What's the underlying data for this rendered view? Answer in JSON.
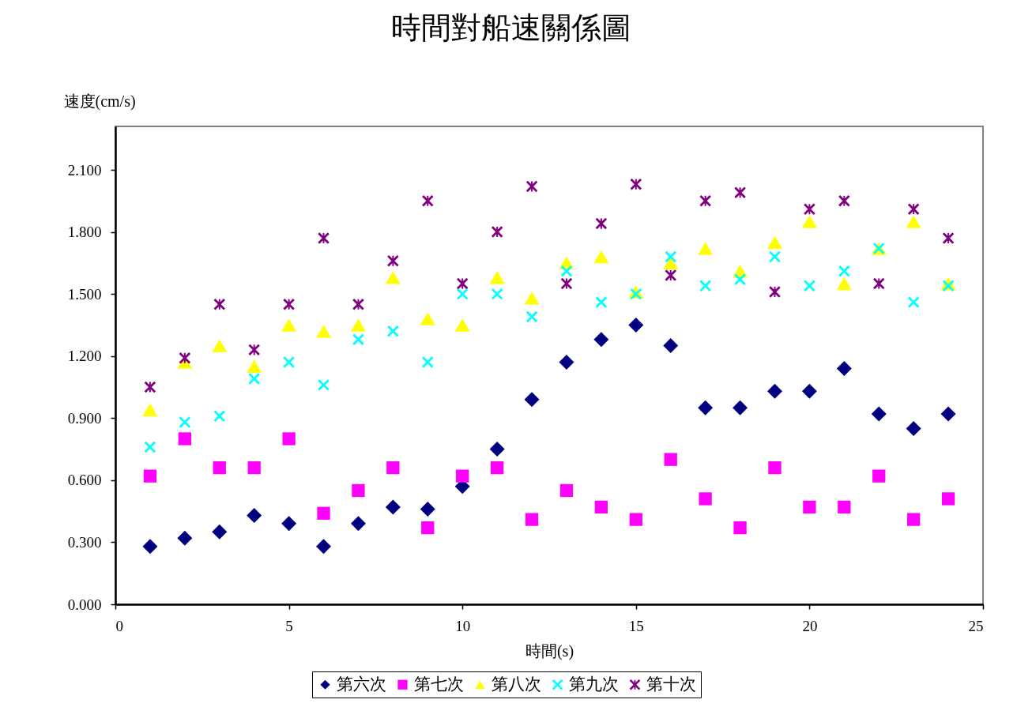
{
  "chart_data": {
    "type": "scatter",
    "title": "時間對船速關係圖",
    "xlabel": "時間(s)",
    "ylabel": "速度(cm/s)",
    "x": [
      1,
      2,
      3,
      4,
      5,
      6,
      7,
      8,
      9,
      10,
      11,
      12,
      13,
      14,
      15,
      16,
      17,
      18,
      19,
      20,
      21,
      22,
      23,
      24
    ],
    "series": [
      {
        "name": "第六次",
        "color": "#000080",
        "marker": "diamond",
        "values": [
          0.28,
          0.32,
          0.35,
          0.43,
          0.39,
          0.28,
          0.39,
          0.47,
          0.46,
          0.57,
          0.75,
          0.99,
          1.17,
          1.28,
          1.35,
          1.25,
          0.95,
          0.95,
          1.03,
          1.03,
          1.14,
          0.92,
          0.85,
          0.92
        ]
      },
      {
        "name": "第七次",
        "color": "#ff00ff",
        "marker": "square",
        "values": [
          0.62,
          0.8,
          0.66,
          0.66,
          0.8,
          0.44,
          0.55,
          0.66,
          0.37,
          0.62,
          0.66,
          0.41,
          0.55,
          0.47,
          0.41,
          0.7,
          0.51,
          0.37,
          0.66,
          0.47,
          0.47,
          0.62,
          0.41,
          0.51
        ]
      },
      {
        "name": "第八次",
        "color": "#ffff00",
        "marker": "triangle",
        "values": [
          0.94,
          1.17,
          1.25,
          1.15,
          1.35,
          1.32,
          1.35,
          1.58,
          1.38,
          1.35,
          1.58,
          1.48,
          1.65,
          1.68,
          1.51,
          1.65,
          1.72,
          1.61,
          1.75,
          1.85,
          1.55,
          1.72,
          1.85,
          1.55
        ]
      },
      {
        "name": "第九次",
        "color": "#00ffff",
        "marker": "cross",
        "values": [
          0.76,
          0.88,
          0.91,
          1.09,
          1.17,
          1.06,
          1.28,
          1.32,
          1.17,
          1.5,
          1.5,
          1.39,
          1.61,
          1.46,
          1.5,
          1.68,
          1.54,
          1.57,
          1.68,
          1.54,
          1.61,
          1.72,
          1.46,
          1.54
        ]
      },
      {
        "name": "第十次",
        "color": "#800080",
        "marker": "star",
        "values": [
          1.05,
          1.19,
          1.45,
          1.23,
          1.45,
          1.77,
          1.45,
          1.66,
          1.95,
          1.55,
          1.8,
          2.02,
          1.55,
          1.84,
          2.03,
          1.59,
          1.95,
          1.99,
          1.51,
          1.91,
          1.95,
          1.55,
          1.91,
          1.77
        ]
      }
    ],
    "xlim": [
      0,
      25
    ],
    "xticks": [
      0,
      5,
      10,
      15,
      20,
      25
    ],
    "ylim": [
      0,
      2.31
    ],
    "yticks": [
      {
        "value": 0,
        "label": "0.000"
      },
      {
        "value": 0.3,
        "label": "0.300"
      },
      {
        "value": 0.6,
        "label": "0.600"
      },
      {
        "value": 0.9,
        "label": "0.900"
      },
      {
        "value": 1.2,
        "label": "1.200"
      },
      {
        "value": 1.5,
        "label": "1.500"
      },
      {
        "value": 1.8,
        "label": "1.800"
      },
      {
        "value": 2.1,
        "label": "2.100"
      }
    ],
    "legend": "bottom"
  }
}
